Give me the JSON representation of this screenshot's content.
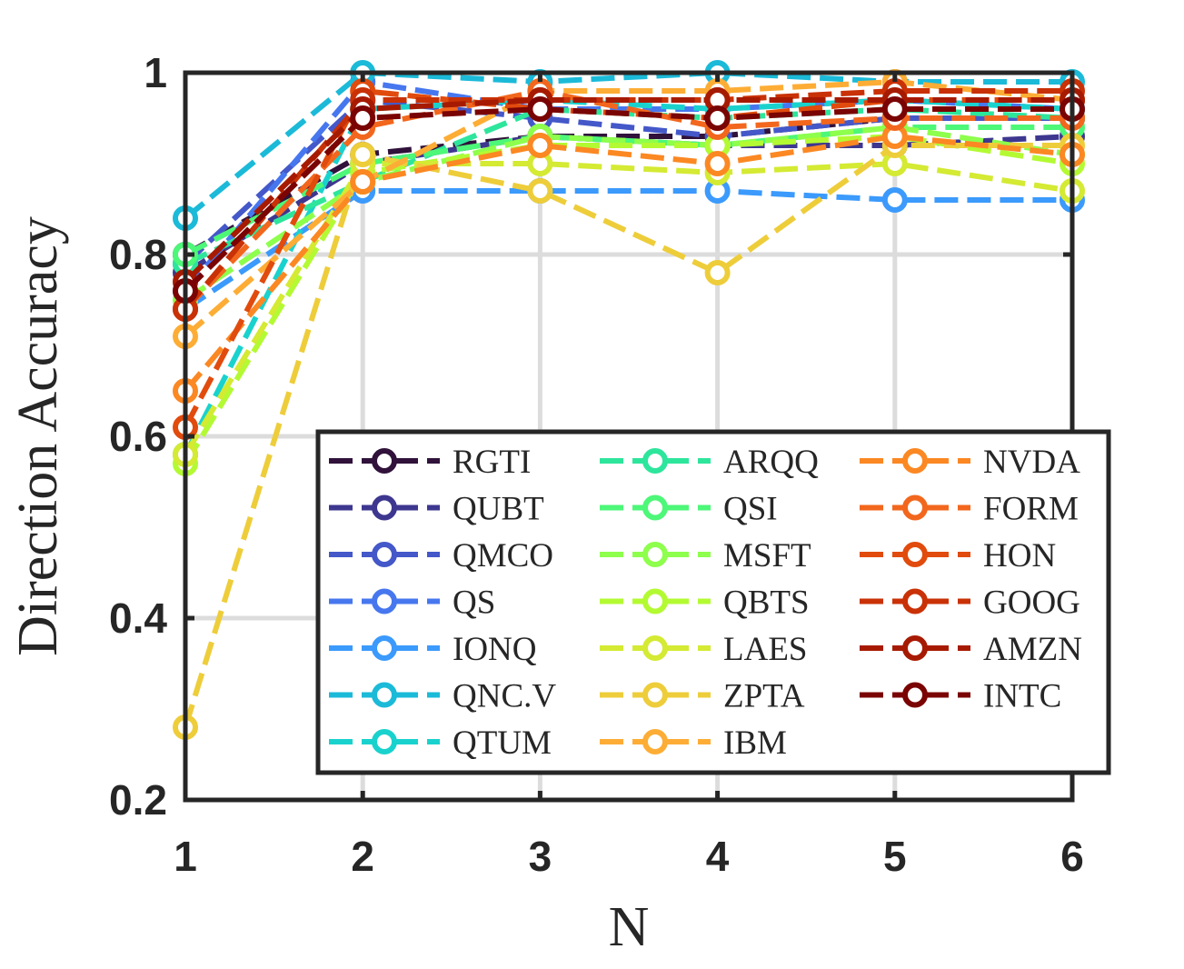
{
  "chart_data": {
    "type": "line",
    "title": "",
    "xlabel": "N",
    "ylabel": "Direction Accuracy",
    "x": [
      1,
      2,
      3,
      4,
      5,
      6
    ],
    "xlim": [
      1,
      6
    ],
    "ylim": [
      0.2,
      1
    ],
    "xticks": [
      "1",
      "2",
      "3",
      "4",
      "5",
      "6"
    ],
    "yticks": [
      "0.2",
      "0.4",
      "0.6",
      "0.8",
      "1"
    ],
    "grid": true,
    "legend_location": "lower-right",
    "series": [
      {
        "name": "RGTI",
        "color": "#30123b",
        "values": [
          0.8,
          0.91,
          0.93,
          0.93,
          0.95,
          0.95
        ]
      },
      {
        "name": "QUBT",
        "color": "#3e378f",
        "values": [
          0.78,
          0.9,
          0.93,
          0.92,
          0.92,
          0.93
        ]
      },
      {
        "name": "QMCO",
        "color": "#4458c9",
        "values": [
          0.79,
          0.97,
          0.95,
          0.93,
          0.95,
          0.95
        ]
      },
      {
        "name": "QS",
        "color": "#4777ef",
        "values": [
          0.76,
          0.99,
          0.96,
          0.96,
          0.97,
          0.96
        ]
      },
      {
        "name": "IONQ",
        "color": "#3b9afc",
        "values": [
          0.74,
          0.87,
          0.87,
          0.87,
          0.86,
          0.86
        ]
      },
      {
        "name": "QNC.V",
        "color": "#1bbad8",
        "values": [
          0.84,
          1.0,
          0.99,
          1.0,
          0.99,
          0.99
        ]
      },
      {
        "name": "QTUM",
        "color": "#1ad2cd",
        "values": [
          0.58,
          0.96,
          0.97,
          0.96,
          0.97,
          0.96
        ]
      },
      {
        "name": "ARQQ",
        "color": "#2ee59c",
        "values": [
          0.79,
          0.88,
          0.96,
          0.95,
          0.96,
          0.95
        ]
      },
      {
        "name": "QSI",
        "color": "#4df778",
        "values": [
          0.8,
          0.9,
          0.93,
          0.92,
          0.94,
          0.94
        ]
      },
      {
        "name": "MSFT",
        "color": "#8dff4c",
        "values": [
          0.75,
          0.88,
          0.93,
          0.92,
          0.94,
          0.91
        ]
      },
      {
        "name": "QBTS",
        "color": "#b3fa33",
        "values": [
          0.57,
          0.89,
          0.92,
          0.92,
          0.93,
          0.9
        ]
      },
      {
        "name": "LAES",
        "color": "#d4ea33",
        "values": [
          0.58,
          0.9,
          0.9,
          0.89,
          0.9,
          0.87
        ]
      },
      {
        "name": "ZPTA",
        "color": "#eecd3a",
        "values": [
          0.28,
          0.91,
          0.87,
          0.78,
          0.92,
          0.92
        ]
      },
      {
        "name": "IBM",
        "color": "#fdad35",
        "values": [
          0.71,
          0.88,
          0.98,
          0.98,
          0.99,
          0.97
        ]
      },
      {
        "name": "NVDA",
        "color": "#fb8823",
        "values": [
          0.65,
          0.88,
          0.92,
          0.9,
          0.93,
          0.91
        ]
      },
      {
        "name": "FORM",
        "color": "#f2671d",
        "values": [
          0.74,
          0.94,
          0.98,
          0.94,
          0.95,
          0.95
        ]
      },
      {
        "name": "HON",
        "color": "#e14b0d",
        "values": [
          0.61,
          0.98,
          0.96,
          0.95,
          0.97,
          0.97
        ]
      },
      {
        "name": "GOOG",
        "color": "#c93106",
        "values": [
          0.74,
          0.97,
          0.97,
          0.97,
          0.98,
          0.98
        ]
      },
      {
        "name": "AMZN",
        "color": "#a71a02",
        "values": [
          0.77,
          0.96,
          0.97,
          0.97,
          0.97,
          0.97
        ]
      },
      {
        "name": "INTC",
        "color": "#7a0403",
        "values": [
          0.76,
          0.95,
          0.96,
          0.95,
          0.96,
          0.96
        ]
      }
    ]
  }
}
